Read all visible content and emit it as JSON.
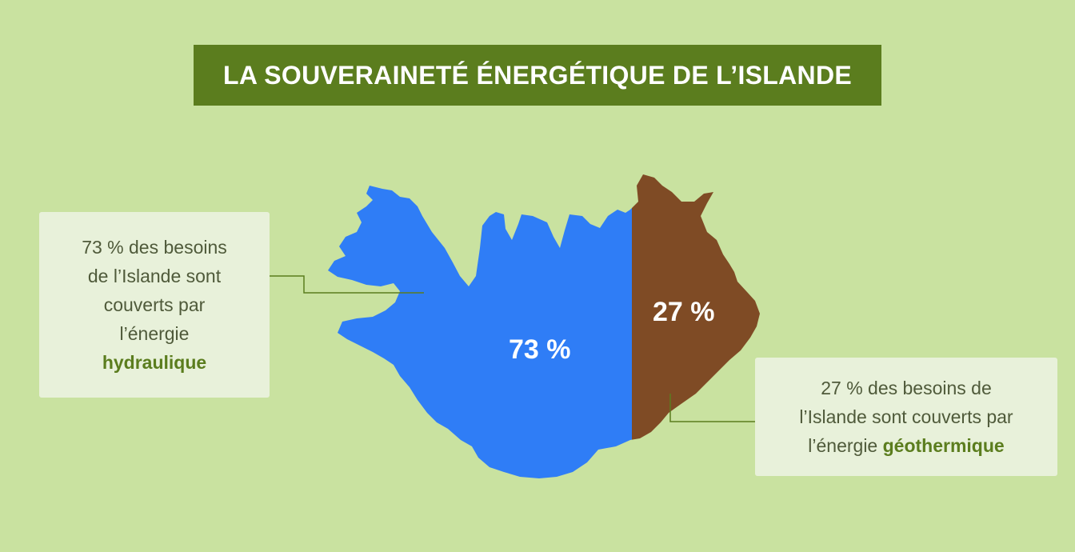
{
  "title": "LA SOUVERAINETÉ ÉNERGÉTIQUE DE L’ISLANDE",
  "colors": {
    "background": "#c9e2a0",
    "banner": "#5b7d1e",
    "hydro": "#2f7df6",
    "geothermal": "#7f4b25",
    "callout_bg": "#e8f1da",
    "accent_text": "#5b7d1e"
  },
  "segments": {
    "hydro": {
      "value_label": "73 %",
      "share": 73,
      "callout": {
        "line1": "73 % des besoins",
        "line2": "de l’Islande sont",
        "line3": "couverts par",
        "line4": "l’énergie",
        "emphasis": "hydraulique"
      }
    },
    "geothermal": {
      "value_label": "27 %",
      "share": 27,
      "callout": {
        "line1": "27 % des besoins de",
        "line2": "l’Islande sont couverts par",
        "line3_prefix": "l’énergie ",
        "emphasis": "géothermique"
      }
    }
  }
}
